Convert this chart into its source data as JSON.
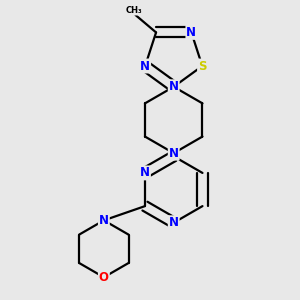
{
  "bg_color": "#e8e8e8",
  "bond_color": "#000000",
  "atom_colors": {
    "N": "#0000FF",
    "S": "#CCCC00",
    "O": "#FF0000",
    "C": "#000000"
  },
  "font_size": 8.5,
  "line_width": 1.6
}
